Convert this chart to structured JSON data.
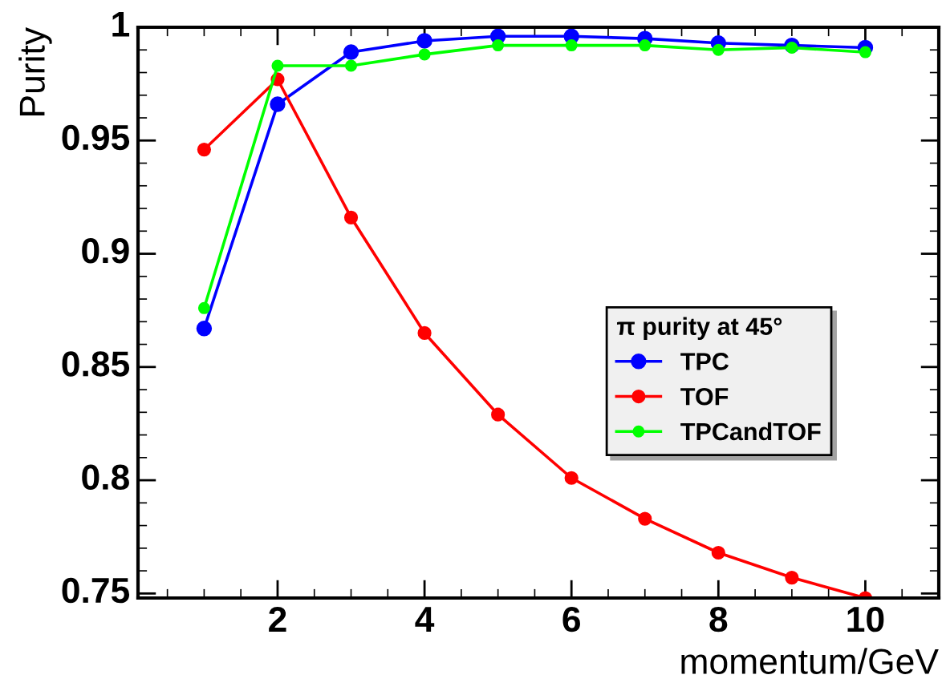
{
  "chart_data": {
    "type": "line",
    "xlabel": "momentum/GeV",
    "ylabel": "Purity",
    "legend_title": "π purity at 45°",
    "legend": "center right",
    "marker": "circle",
    "grid": false,
    "x": [
      1,
      2,
      3,
      4,
      5,
      6,
      7,
      8,
      9,
      10
    ],
    "xlim": [
      0.1,
      11
    ],
    "xticks": [
      2,
      4,
      6,
      8,
      10
    ],
    "ylim": [
      0.748,
      1
    ],
    "yticks": [
      0.75,
      0.8,
      0.85,
      0.9,
      0.95,
      1
    ],
    "series": [
      {
        "name": "TPC",
        "color": "#0000ff",
        "values": [
          0.867,
          0.966,
          0.989,
          0.994,
          0.996,
          0.996,
          0.995,
          0.993,
          0.992,
          0.991
        ]
      },
      {
        "name": "TOF",
        "color": "#ff0000",
        "values": [
          0.946,
          0.977,
          0.916,
          0.865,
          0.829,
          0.801,
          0.783,
          0.768,
          0.757,
          0.748
        ]
      },
      {
        "name": "TPCandTOF",
        "color": "#00ff00",
        "values": [
          0.876,
          0.983,
          0.983,
          0.988,
          0.992,
          0.992,
          0.992,
          0.99,
          0.991,
          0.989
        ]
      }
    ]
  }
}
